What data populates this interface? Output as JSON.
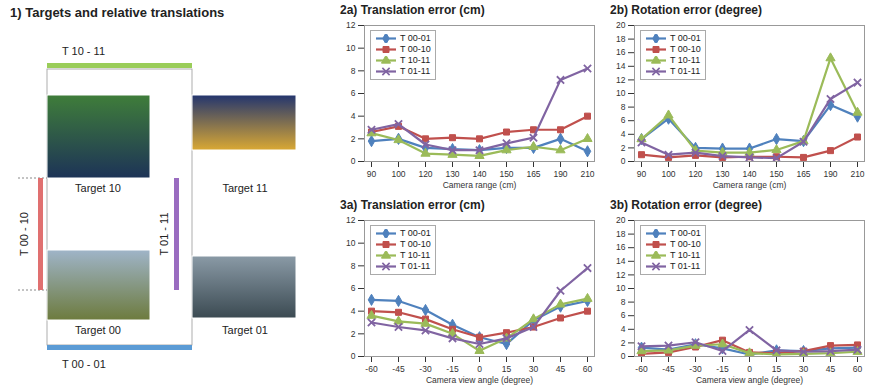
{
  "diagram": {
    "title": "1) Targets and relative translations",
    "targets": [
      "Target 10",
      "Target 11",
      "Target 00",
      "Target 01"
    ],
    "translations": [
      {
        "label": "T 10 - 11",
        "color": "#9acd59"
      },
      {
        "label": "T 00 - 10",
        "color": "#e07070"
      },
      {
        "label": "T 01 - 11",
        "color": "#9a6cc0"
      },
      {
        "label": "T 00 - 01",
        "color": "#5b9bd5"
      }
    ]
  },
  "chart_data": [
    {
      "type": "line",
      "title": "2a) Translation error (cm)",
      "xlabel": "Camera range (cm)",
      "categories": [
        90,
        100,
        120,
        130,
        140,
        150,
        165,
        190,
        210
      ],
      "ylim": [
        0,
        12
      ],
      "yticks": [
        0,
        2,
        4,
        6,
        8,
        10,
        12
      ],
      "grid": false,
      "legend": "upper left",
      "series": [
        {
          "name": "T 00-01",
          "color": "#4f81bd",
          "marker": "diamond",
          "values": [
            1.8,
            2.0,
            1.2,
            1.1,
            1.0,
            1.2,
            1.2,
            2.0,
            0.9
          ]
        },
        {
          "name": "T 00-10",
          "color": "#c0504d",
          "marker": "square",
          "values": [
            2.6,
            3.1,
            2.0,
            2.1,
            2.0,
            2.6,
            2.8,
            2.8,
            4.0
          ]
        },
        {
          "name": "T 10-11",
          "color": "#9bbb59",
          "marker": "triangle",
          "values": [
            2.5,
            1.9,
            0.7,
            0.6,
            0.5,
            1.0,
            1.3,
            1.0,
            2.0
          ]
        },
        {
          "name": "T 01-11",
          "color": "#8064a2",
          "marker": "times",
          "values": [
            2.8,
            3.3,
            1.5,
            1.0,
            1.0,
            1.6,
            2.1,
            7.2,
            8.2
          ]
        }
      ]
    },
    {
      "type": "line",
      "title": "2b) Rotation error (degree)",
      "xlabel": "Camera range (cm)",
      "categories": [
        90,
        100,
        120,
        130,
        140,
        150,
        165,
        190,
        210
      ],
      "ylim": [
        0,
        20
      ],
      "yticks": [
        0,
        2,
        4,
        6,
        8,
        10,
        12,
        14,
        16,
        18,
        20
      ],
      "grid": false,
      "legend": "upper left",
      "series": [
        {
          "name": "T 00-01",
          "color": "#4f81bd",
          "marker": "diamond",
          "values": [
            3.3,
            6.3,
            2.0,
            1.9,
            1.9,
            3.3,
            3.0,
            8.3,
            6.6
          ]
        },
        {
          "name": "T 00-10",
          "color": "#c0504d",
          "marker": "square",
          "values": [
            1.0,
            0.6,
            0.9,
            0.6,
            0.7,
            0.7,
            0.6,
            1.6,
            3.6
          ]
        },
        {
          "name": "T 10-11",
          "color": "#9bbb59",
          "marker": "triangle",
          "values": [
            3.3,
            6.8,
            1.6,
            1.3,
            1.3,
            1.7,
            3.0,
            15.2,
            7.2
          ]
        },
        {
          "name": "T 01-11",
          "color": "#8064a2",
          "marker": "times",
          "values": [
            2.8,
            1.0,
            1.3,
            0.8,
            0.6,
            0.5,
            2.9,
            9.2,
            11.6
          ]
        }
      ]
    },
    {
      "type": "line",
      "title": "3a) Translation error (cm)",
      "xlabel": "Camera view angle (degree)",
      "categories": [
        -60,
        -45,
        -30,
        -15,
        0,
        15,
        30,
        45,
        60
      ],
      "ylim": [
        0,
        12
      ],
      "yticks": [
        0,
        2,
        4,
        6,
        8,
        10,
        12
      ],
      "grid": false,
      "legend": "upper left",
      "series": [
        {
          "name": "T 00-01",
          "color": "#4f81bd",
          "marker": "diamond",
          "values": [
            5.0,
            4.9,
            4.1,
            2.8,
            1.7,
            1.1,
            3.2,
            4.4,
            4.9
          ]
        },
        {
          "name": "T 00-10",
          "color": "#c0504d",
          "marker": "square",
          "values": [
            4.0,
            3.9,
            3.3,
            2.4,
            1.7,
            2.1,
            2.6,
            3.4,
            4.0
          ]
        },
        {
          "name": "T 10-11",
          "color": "#9bbb59",
          "marker": "triangle",
          "values": [
            3.6,
            3.1,
            2.9,
            2.0,
            0.5,
            1.6,
            3.3,
            4.6,
            5.1
          ]
        },
        {
          "name": "T 01-11",
          "color": "#8064a2",
          "marker": "times",
          "values": [
            3.0,
            2.6,
            2.3,
            1.6,
            1.1,
            1.6,
            2.6,
            5.8,
            7.8
          ]
        }
      ]
    },
    {
      "type": "line",
      "title": "3b) Rotation error (degree)",
      "xlabel": "Camera view angle (degree)",
      "categories": [
        -60,
        -45,
        -30,
        -15,
        0,
        15,
        30,
        45,
        60
      ],
      "ylim": [
        0,
        20
      ],
      "yticks": [
        0,
        2,
        4,
        6,
        8,
        10,
        12,
        14,
        16,
        18,
        20
      ],
      "grid": false,
      "legend": "upper left",
      "series": [
        {
          "name": "T 00-01",
          "color": "#4f81bd",
          "marker": "diamond",
          "values": [
            1.3,
            1.0,
            1.8,
            1.2,
            0.3,
            0.9,
            0.8,
            1.2,
            1.3
          ]
        },
        {
          "name": "T 00-10",
          "color": "#c0504d",
          "marker": "square",
          "values": [
            0.4,
            0.6,
            1.4,
            2.4,
            0.6,
            0.5,
            0.8,
            1.6,
            1.7
          ]
        },
        {
          "name": "T 10-11",
          "color": "#9bbb59",
          "marker": "triangle",
          "values": [
            0.8,
            0.9,
            1.6,
            1.8,
            0.5,
            0.3,
            0.4,
            0.5,
            0.7
          ]
        },
        {
          "name": "T 01-11",
          "color": "#8064a2",
          "marker": "times",
          "values": [
            1.5,
            1.6,
            2.1,
            0.8,
            3.9,
            0.9,
            0.7,
            0.8,
            1.0
          ]
        }
      ]
    }
  ]
}
